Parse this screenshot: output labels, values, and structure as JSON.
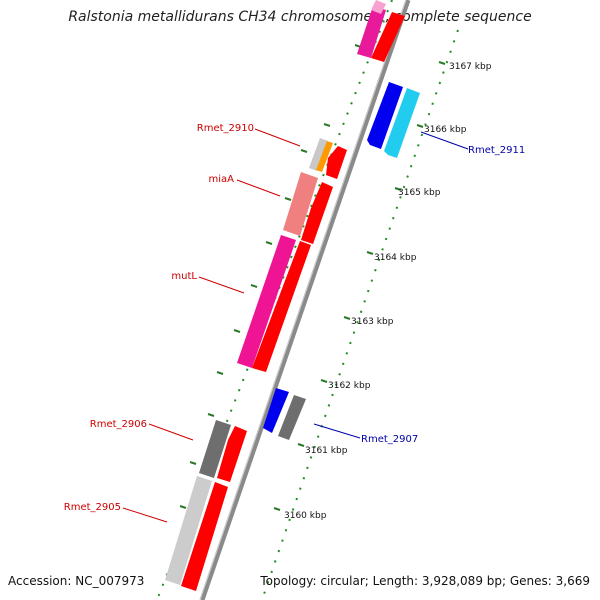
{
  "title": "Ralstonia metallidurans CH34 chromosome 1, complete sequence",
  "accession": "Accession: NC_007973",
  "summary": "Topology: circular; Length: 3,928,089 bp; Genes: 3,669",
  "colors": {
    "forward_label": "#cc0000",
    "reverse_label": "#0000aa",
    "backbone": "#888888",
    "tick_major": "#2a7a2a",
    "tick_minor": "#1f8f1f"
  },
  "scale_ticks": [
    {
      "label": "3167 kbp",
      "kbp": 3167
    },
    {
      "label": "3166 kbp",
      "kbp": 3166
    },
    {
      "label": "3165 kbp",
      "kbp": 3165
    },
    {
      "label": "3164 kbp",
      "kbp": 3164
    },
    {
      "label": "3163 kbp",
      "kbp": 3163
    },
    {
      "label": "3162 kbp",
      "kbp": 3162
    },
    {
      "label": "3161 kbp",
      "kbp": 3161
    },
    {
      "label": "3160 kbp",
      "kbp": 3160
    }
  ],
  "gene_labels": [
    {
      "name": "Rmet_2910",
      "strand": "forward"
    },
    {
      "name": "miaA",
      "strand": "forward"
    },
    {
      "name": "mutL",
      "strand": "forward"
    },
    {
      "name": "Rmet_2906",
      "strand": "forward"
    },
    {
      "name": "Rmet_2905",
      "strand": "forward"
    },
    {
      "name": "Rmet_2911",
      "strand": "reverse"
    },
    {
      "name": "Rmet_2907",
      "strand": "reverse"
    }
  ]
}
